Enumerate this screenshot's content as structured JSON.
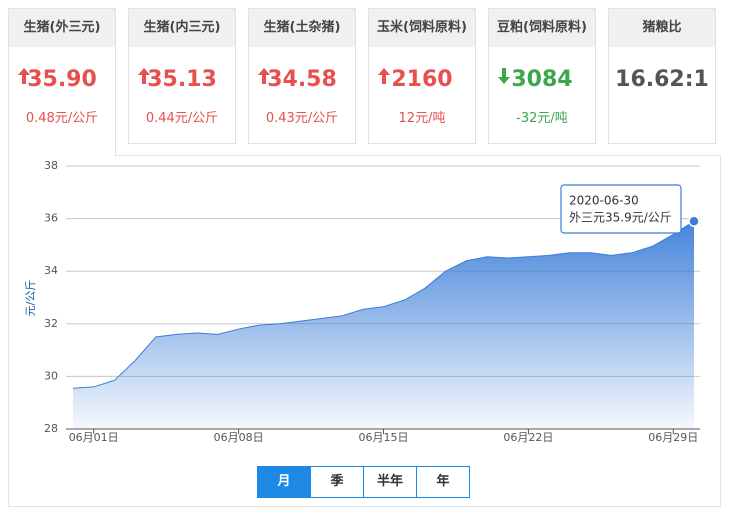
{
  "cards": [
    {
      "title": "生猪(外三元)",
      "price": "35.90",
      "change": "0.48元/公斤",
      "trend": "up",
      "color": "#e8504f"
    },
    {
      "title": "生猪(内三元)",
      "price": "35.13",
      "change": "0.44元/公斤",
      "trend": "up",
      "color": "#e8504f"
    },
    {
      "title": "生猪(土杂猪)",
      "price": "34.58",
      "change": "0.43元/公斤",
      "trend": "up",
      "color": "#e8504f"
    },
    {
      "title": "玉米(饲料原料)",
      "price": "2160",
      "change": "12元/吨",
      "trend": "up",
      "color": "#e8504f"
    },
    {
      "title": "豆粕(饲料原料)",
      "price": "3084",
      "change": "-32元/吨",
      "trend": "down",
      "color": "#3aa84a"
    },
    {
      "title": "猪粮比",
      "price": "16.62:1",
      "color": "#555555"
    }
  ],
  "chart_data": {
    "type": "area",
    "y_label": "元/公斤",
    "color": "#3b7dd8",
    "categories": [
      null,
      "06月01日",
      null,
      null,
      null,
      null,
      null,
      null,
      "06月08日",
      null,
      null,
      null,
      null,
      null,
      null,
      "06月15日",
      null,
      null,
      null,
      null,
      null,
      null,
      "06月22日",
      null,
      null,
      null,
      null,
      null,
      null,
      "06月29日",
      null
    ],
    "values": [
      29.55,
      29.6,
      29.85,
      30.6,
      31.5,
      31.6,
      31.65,
      31.6,
      31.8,
      31.95,
      32.0,
      32.1,
      32.2,
      32.3,
      32.55,
      32.65,
      32.9,
      33.35,
      34.0,
      34.4,
      34.55,
      34.5,
      34.55,
      34.6,
      34.7,
      34.7,
      34.6,
      34.7,
      34.95,
      35.4,
      35.9
    ],
    "ylim": [
      28,
      38
    ],
    "yticks": [
      28,
      30,
      32,
      34,
      36,
      38
    ],
    "grid": true,
    "tooltip": {
      "date": "2020-06-30",
      "text": "外三元35.9元/公斤"
    }
  },
  "ranges": [
    "月",
    "季",
    "半年",
    "年"
  ],
  "active_range": 0
}
